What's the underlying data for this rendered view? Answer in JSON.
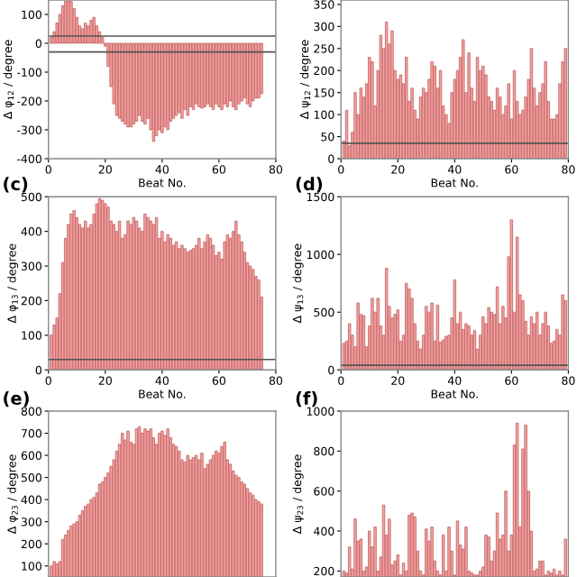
{
  "chart_data": [
    {
      "type": "bar",
      "xlabel": "Beat No.",
      "ylabel": "Δ φ$_{12}$ / degree",
      "x": [
        1,
        2,
        3,
        4,
        5,
        6,
        7,
        8,
        9,
        10,
        11,
        12,
        13,
        14,
        15,
        16,
        17,
        18,
        19,
        20,
        21,
        22,
        23,
        24,
        25,
        26,
        27,
        28,
        29,
        30,
        31,
        32,
        33,
        34,
        35,
        36,
        37,
        38,
        39,
        40,
        41,
        42,
        43,
        44,
        45,
        46,
        47,
        48,
        49,
        50,
        51,
        52,
        53,
        54,
        55,
        56,
        57,
        58,
        59,
        60,
        61,
        62,
        63,
        64,
        65,
        66,
        67,
        68,
        69,
        70,
        71,
        72,
        73,
        74,
        75
      ],
      "color": "#f7a3a3",
      "values": [
        20,
        40,
        70,
        100,
        130,
        145,
        145,
        145,
        120,
        90,
        60,
        50,
        70,
        60,
        80,
        90,
        60,
        40,
        20,
        -10,
        -80,
        -150,
        -210,
        -250,
        -260,
        -270,
        -280,
        -290,
        -290,
        -280,
        -270,
        -250,
        -270,
        -280,
        -260,
        -300,
        -340,
        -320,
        -300,
        -310,
        -290,
        -300,
        -270,
        -260,
        -250,
        -240,
        -260,
        -230,
        -250,
        -220,
        -230,
        -210,
        -220,
        -225,
        -220,
        -210,
        -220,
        -230,
        -210,
        -220,
        -230,
        -210,
        -220,
        -200,
        -220,
        -230,
        -210,
        -200,
        -190,
        -210,
        -220,
        -200,
        -190,
        -190,
        -175
      ],
      "xlim": [
        0,
        80
      ],
      "xticks": [
        0,
        20,
        40,
        60,
        80
      ],
      "ylim": [
        -400,
        150
      ],
      "yticks": [
        -400,
        -300,
        -200,
        -100,
        0,
        100
      ],
      "ref_lines": [
        {
          "axis": "y",
          "value": 25,
          "color": "#555555"
        },
        {
          "axis": "y",
          "value": -30,
          "color": "#555555"
        }
      ],
      "grid": false,
      "legend": false
    },
    {
      "type": "bar",
      "xlabel": "Beat No.",
      "ylabel": "Δ ψ$_{12}$ / degree",
      "x": [
        1,
        2,
        3,
        4,
        5,
        6,
        7,
        8,
        9,
        10,
        11,
        12,
        13,
        14,
        15,
        16,
        17,
        18,
        19,
        20,
        21,
        22,
        23,
        24,
        25,
        26,
        27,
        28,
        29,
        30,
        31,
        32,
        33,
        34,
        35,
        36,
        37,
        38,
        39,
        40,
        41,
        42,
        43,
        44,
        45,
        46,
        47,
        48,
        49,
        50,
        51,
        52,
        53,
        54,
        55,
        56,
        57,
        58,
        59,
        60,
        61,
        62,
        63,
        64,
        65,
        66,
        67,
        68,
        69,
        70,
        71,
        72,
        73,
        74,
        75,
        76,
        77,
        78,
        79
      ],
      "color": "#f7a3a3",
      "values": [
        40,
        110,
        30,
        60,
        150,
        100,
        160,
        140,
        170,
        230,
        220,
        120,
        200,
        280,
        250,
        310,
        260,
        290,
        200,
        180,
        190,
        170,
        230,
        130,
        160,
        110,
        90,
        140,
        160,
        150,
        180,
        220,
        210,
        160,
        200,
        120,
        100,
        80,
        150,
        180,
        200,
        230,
        270,
        150,
        240,
        160,
        130,
        230,
        200,
        210,
        190,
        140,
        130,
        110,
        160,
        140,
        100,
        120,
        170,
        90,
        200,
        130,
        100,
        110,
        140,
        180,
        250,
        160,
        120,
        150,
        170,
        220,
        130,
        90,
        90,
        100,
        170,
        220,
        250
      ],
      "xlim": [
        0,
        80
      ],
      "xticks": [
        0,
        20,
        40,
        60,
        80
      ],
      "ylim": [
        0,
        360
      ],
      "yticks": [
        0,
        50,
        100,
        150,
        200,
        250,
        300,
        350
      ],
      "ref_lines": [
        {
          "axis": "y",
          "value": 35,
          "color": "#555555"
        }
      ],
      "grid": false,
      "legend": false
    },
    {
      "type": "bar",
      "xlabel": "Beat No.",
      "ylabel": "Δ φ$_{13}$ / degree",
      "annotations": [
        "(c)"
      ],
      "x": [
        1,
        2,
        3,
        4,
        5,
        6,
        7,
        8,
        9,
        10,
        11,
        12,
        13,
        14,
        15,
        16,
        17,
        18,
        19,
        20,
        21,
        22,
        23,
        24,
        25,
        26,
        27,
        28,
        29,
        30,
        31,
        32,
        33,
        34,
        35,
        36,
        37,
        38,
        39,
        40,
        41,
        42,
        43,
        44,
        45,
        46,
        47,
        48,
        49,
        50,
        51,
        52,
        53,
        54,
        55,
        56,
        57,
        58,
        59,
        60,
        61,
        62,
        63,
        64,
        65,
        66,
        67,
        68,
        69,
        70,
        71,
        72,
        73,
        74,
        75
      ],
      "color": "#f7a3a3",
      "values": [
        100,
        130,
        150,
        220,
        310,
        380,
        420,
        450,
        460,
        440,
        420,
        410,
        430,
        410,
        420,
        450,
        480,
        495,
        490,
        480,
        470,
        430,
        420,
        400,
        430,
        380,
        390,
        430,
        420,
        440,
        430,
        410,
        400,
        450,
        440,
        430,
        420,
        440,
        380,
        400,
        370,
        390,
        380,
        360,
        370,
        350,
        360,
        350,
        340,
        345,
        350,
        360,
        380,
        350,
        370,
        390,
        380,
        360,
        330,
        340,
        320,
        370,
        390,
        380,
        400,
        430,
        390,
        370,
        340,
        310,
        300,
        290,
        270,
        260,
        210
      ],
      "xlim": [
        0,
        80
      ],
      "xticks": [
        0,
        20,
        40,
        60,
        80
      ],
      "ylim": [
        0,
        500
      ],
      "yticks": [
        0,
        100,
        200,
        300,
        400,
        500
      ],
      "ref_lines": [
        {
          "axis": "y",
          "value": 30,
          "color": "#555555"
        }
      ],
      "grid": false,
      "legend": false
    },
    {
      "type": "bar",
      "xlabel": "Beat No.",
      "ylabel": "Δ ψ$_{13}$ / degree",
      "annotations": [
        "(d)"
      ],
      "x": [
        1,
        2,
        3,
        4,
        5,
        6,
        7,
        8,
        9,
        10,
        11,
        12,
        13,
        14,
        15,
        16,
        17,
        18,
        19,
        20,
        21,
        22,
        23,
        24,
        25,
        26,
        27,
        28,
        29,
        30,
        31,
        32,
        33,
        34,
        35,
        36,
        37,
        38,
        39,
        40,
        41,
        42,
        43,
        44,
        45,
        46,
        47,
        48,
        49,
        50,
        51,
        52,
        53,
        54,
        55,
        56,
        57,
        58,
        59,
        60,
        61,
        62,
        63,
        64,
        65,
        66,
        67,
        68,
        69,
        70,
        71,
        72,
        73,
        74,
        75,
        76,
        77,
        78,
        79
      ],
      "color": "#f7a3a3",
      "values": [
        230,
        250,
        400,
        300,
        200,
        580,
        480,
        470,
        200,
        380,
        620,
        500,
        620,
        380,
        300,
        880,
        550,
        450,
        480,
        520,
        250,
        300,
        750,
        700,
        620,
        400,
        250,
        180,
        300,
        550,
        500,
        580,
        250,
        560,
        240,
        260,
        290,
        300,
        450,
        780,
        400,
        500,
        350,
        400,
        380,
        300,
        340,
        180,
        300,
        460,
        400,
        540,
        500,
        480,
        720,
        400,
        550,
        450,
        980,
        1300,
        500,
        1150,
        650,
        600,
        420,
        300,
        460,
        400,
        500,
        300,
        400,
        500,
        380,
        230,
        250,
        350,
        300,
        650,
        600
      ],
      "xlim": [
        0,
        80
      ],
      "xticks": [
        0,
        20,
        40,
        60,
        80
      ],
      "ylim": [
        0,
        1500
      ],
      "yticks": [
        0,
        500,
        1000,
        1500
      ],
      "ref_lines": [
        {
          "axis": "y",
          "value": 40,
          "color": "#555555"
        }
      ],
      "grid": false,
      "legend": false
    },
    {
      "type": "bar",
      "ylabel": "Δ φ$_{23}$ / degree",
      "annotations": [
        "(e)"
      ],
      "x": [
        1,
        2,
        3,
        4,
        5,
        6,
        7,
        8,
        9,
        10,
        11,
        12,
        13,
        14,
        15,
        16,
        17,
        18,
        19,
        20,
        21,
        22,
        23,
        24,
        25,
        26,
        27,
        28,
        29,
        30,
        31,
        32,
        33,
        34,
        35,
        36,
        37,
        38,
        39,
        40,
        41,
        42,
        43,
        44,
        45,
        46,
        47,
        48,
        49,
        50,
        51,
        52,
        53,
        54,
        55,
        56,
        57,
        58,
        59,
        60,
        61,
        62,
        63,
        64,
        65,
        66,
        67,
        68,
        69,
        70,
        71,
        72,
        73,
        74,
        75
      ],
      "color": "#f7a3a3",
      "values": [
        100,
        120,
        110,
        120,
        220,
        240,
        260,
        280,
        290,
        300,
        330,
        350,
        370,
        380,
        400,
        410,
        430,
        470,
        480,
        500,
        520,
        550,
        580,
        620,
        650,
        700,
        670,
        710,
        660,
        650,
        720,
        730,
        700,
        720,
        710,
        720,
        680,
        650,
        700,
        710,
        690,
        720,
        680,
        650,
        640,
        620,
        580,
        570,
        600,
        580,
        590,
        600,
        580,
        610,
        540,
        560,
        580,
        600,
        620,
        610,
        640,
        660,
        580,
        560,
        530,
        510,
        500,
        480,
        470,
        450,
        430,
        420,
        400,
        390,
        380
      ],
      "xlim": [
        0,
        80
      ],
      "ylim": [
        50,
        800
      ],
      "yticks": [
        100,
        200,
        300,
        400,
        500,
        600,
        700,
        800
      ],
      "tick_labels": "y",
      "grid": false,
      "legend": false
    },
    {
      "type": "bar",
      "ylabel": "Δ ψ$_{23}$ / degree",
      "annotations": [
        "(f)"
      ],
      "x": [
        1,
        2,
        3,
        4,
        5,
        6,
        7,
        8,
        9,
        10,
        11,
        12,
        13,
        14,
        15,
        16,
        17,
        18,
        19,
        20,
        21,
        22,
        23,
        24,
        25,
        26,
        27,
        28,
        29,
        30,
        31,
        32,
        33,
        34,
        35,
        36,
        37,
        38,
        39,
        40,
        41,
        42,
        43,
        44,
        45,
        46,
        47,
        48,
        49,
        50,
        51,
        52,
        53,
        54,
        55,
        56,
        57,
        58,
        59,
        60,
        61,
        62,
        63,
        64,
        65,
        66,
        67,
        68,
        69,
        70,
        71,
        72,
        73,
        74,
        75,
        76,
        77,
        78,
        79
      ],
      "color": "#f7a3a3",
      "values": [
        200,
        190,
        320,
        210,
        460,
        350,
        360,
        200,
        220,
        400,
        320,
        420,
        200,
        270,
        530,
        380,
        460,
        230,
        250,
        280,
        180,
        240,
        200,
        480,
        490,
        470,
        300,
        200,
        180,
        410,
        350,
        420,
        250,
        200,
        180,
        380,
        200,
        420,
        300,
        180,
        450,
        330,
        310,
        420,
        200,
        190,
        180,
        180,
        200,
        220,
        380,
        370,
        250,
        300,
        490,
        360,
        380,
        600,
        300,
        380,
        830,
        940,
        420,
        810,
        930,
        600,
        400,
        200,
        210,
        250,
        250,
        180,
        200,
        190,
        210,
        180,
        200,
        180,
        360
      ],
      "xlim": [
        0,
        80
      ],
      "ylim": [
        170,
        1000
      ],
      "yticks": [
        200,
        400,
        600,
        800,
        1000
      ],
      "tick_labels": "y",
      "grid": false,
      "legend": false
    }
  ]
}
